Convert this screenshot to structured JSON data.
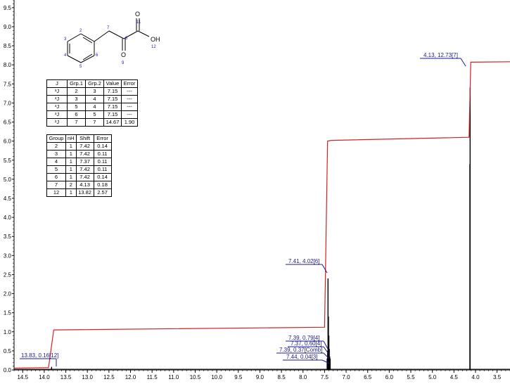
{
  "chart_data": {
    "type": "line",
    "title": "",
    "xlabel": "",
    "ylabel": "",
    "x_reversed": true,
    "xlim": [
      14.7,
      3.2
    ],
    "ylim": [
      0,
      9.7
    ],
    "x_ticks": [
      "14.5",
      "14.0",
      "13.5",
      "13.0",
      "12.5",
      "12.0",
      "11.5",
      "11.0",
      "10.5",
      "10.0",
      "9.5",
      "9.0",
      "8.5",
      "8.0",
      "7.5",
      "7.0",
      "6.5",
      "6.0",
      "5.5",
      "5.0",
      "4.5",
      "4.0",
      "3.5"
    ],
    "y_ticks": [
      "0.0",
      "0.5",
      "1.0",
      "1.5",
      "2.0",
      "2.5",
      "3.0",
      "3.5",
      "4.0",
      "4.5",
      "5.0",
      "5.5",
      "6.0",
      "6.5",
      "7.0",
      "7.5",
      "8.0",
      "8.5",
      "9.0",
      "9.5"
    ],
    "spectrum_peaks": [
      {
        "shift": 13.83,
        "height": 0.08
      },
      {
        "shift": 7.44,
        "height": 0.3
      },
      {
        "shift": 7.43,
        "height": 0.5
      },
      {
        "shift": 7.42,
        "height": 2.4
      },
      {
        "shift": 7.41,
        "height": 1.4
      },
      {
        "shift": 7.4,
        "height": 0.9
      },
      {
        "shift": 7.39,
        "height": 0.55
      },
      {
        "shift": 7.38,
        "height": 0.35
      },
      {
        "shift": 7.37,
        "height": 0.3
      },
      {
        "shift": 4.13,
        "height": 5.4
      },
      {
        "shift": 4.125,
        "height": 7.4
      }
    ],
    "integral_curve": [
      [
        14.7,
        0.05
      ],
      [
        13.9,
        0.06
      ],
      [
        13.78,
        1.05
      ],
      [
        7.5,
        1.12
      ],
      [
        7.43,
        6.0
      ],
      [
        7.35,
        6.02
      ],
      [
        4.15,
        6.1
      ],
      [
        4.11,
        8.07
      ],
      [
        3.2,
        8.08
      ]
    ],
    "annotations": [
      {
        "label": "13.83, 0.16[12]",
        "shift": 13.83
      },
      {
        "label": "7.41, 4.02[6]",
        "shift": 7.41
      },
      {
        "label": "7.39, 0.79[4]",
        "shift": 7.39
      },
      {
        "label": "7.37, 0.60[4]",
        "shift": 7.37
      },
      {
        "label": "7.39, 0.37[Comb]",
        "shift": 7.39
      },
      {
        "label": "7.44, 0.04[3]",
        "shift": 7.44
      },
      {
        "label": "4.13, 12.73[7]",
        "shift": 4.13
      }
    ],
    "colors": {
      "spectrum": "#000000",
      "integral": "#d62020",
      "annotation": "#1a1a8c"
    }
  },
  "molecule": {
    "labels": {
      "oh": "OH",
      "o_top": "O",
      "o_bottom": "O",
      "n2": "2",
      "n3": "3",
      "n4": "4",
      "n5": "5",
      "n6": "6",
      "n7": "7",
      "n8": "8",
      "n9": "9",
      "n11": "11",
      "n12": "12"
    },
    "bond_color": "#000000",
    "number_color": "#1a1ad0"
  },
  "coupling_table": {
    "headers": [
      "J",
      "Grp.1",
      "Grp.2",
      "Value",
      "Error"
    ],
    "rows": [
      [
        "³J",
        "2",
        "3",
        "7.15",
        "---"
      ],
      [
        "³J",
        "3",
        "4",
        "7.15",
        "---"
      ],
      [
        "³J",
        "5",
        "4",
        "7.15",
        "---"
      ],
      [
        "³J",
        "6",
        "5",
        "7.15",
        "---"
      ],
      [
        "²J",
        "7",
        "7",
        "14.67",
        "1.90"
      ]
    ]
  },
  "shift_table": {
    "headers": [
      "Group",
      "nH",
      "Shift",
      "Error"
    ],
    "rows": [
      [
        "2",
        "1",
        "7.42",
        "0.14"
      ],
      [
        "3",
        "1",
        "7.42",
        "0.11"
      ],
      [
        "4",
        "1",
        "7.37",
        "0.11"
      ],
      [
        "5",
        "1",
        "7.42",
        "0.11"
      ],
      [
        "6",
        "1",
        "7.42",
        "0.14"
      ],
      [
        "7",
        "2",
        "4.13",
        "0.18"
      ],
      [
        "12",
        "1",
        "13.82",
        "2.57"
      ]
    ]
  }
}
